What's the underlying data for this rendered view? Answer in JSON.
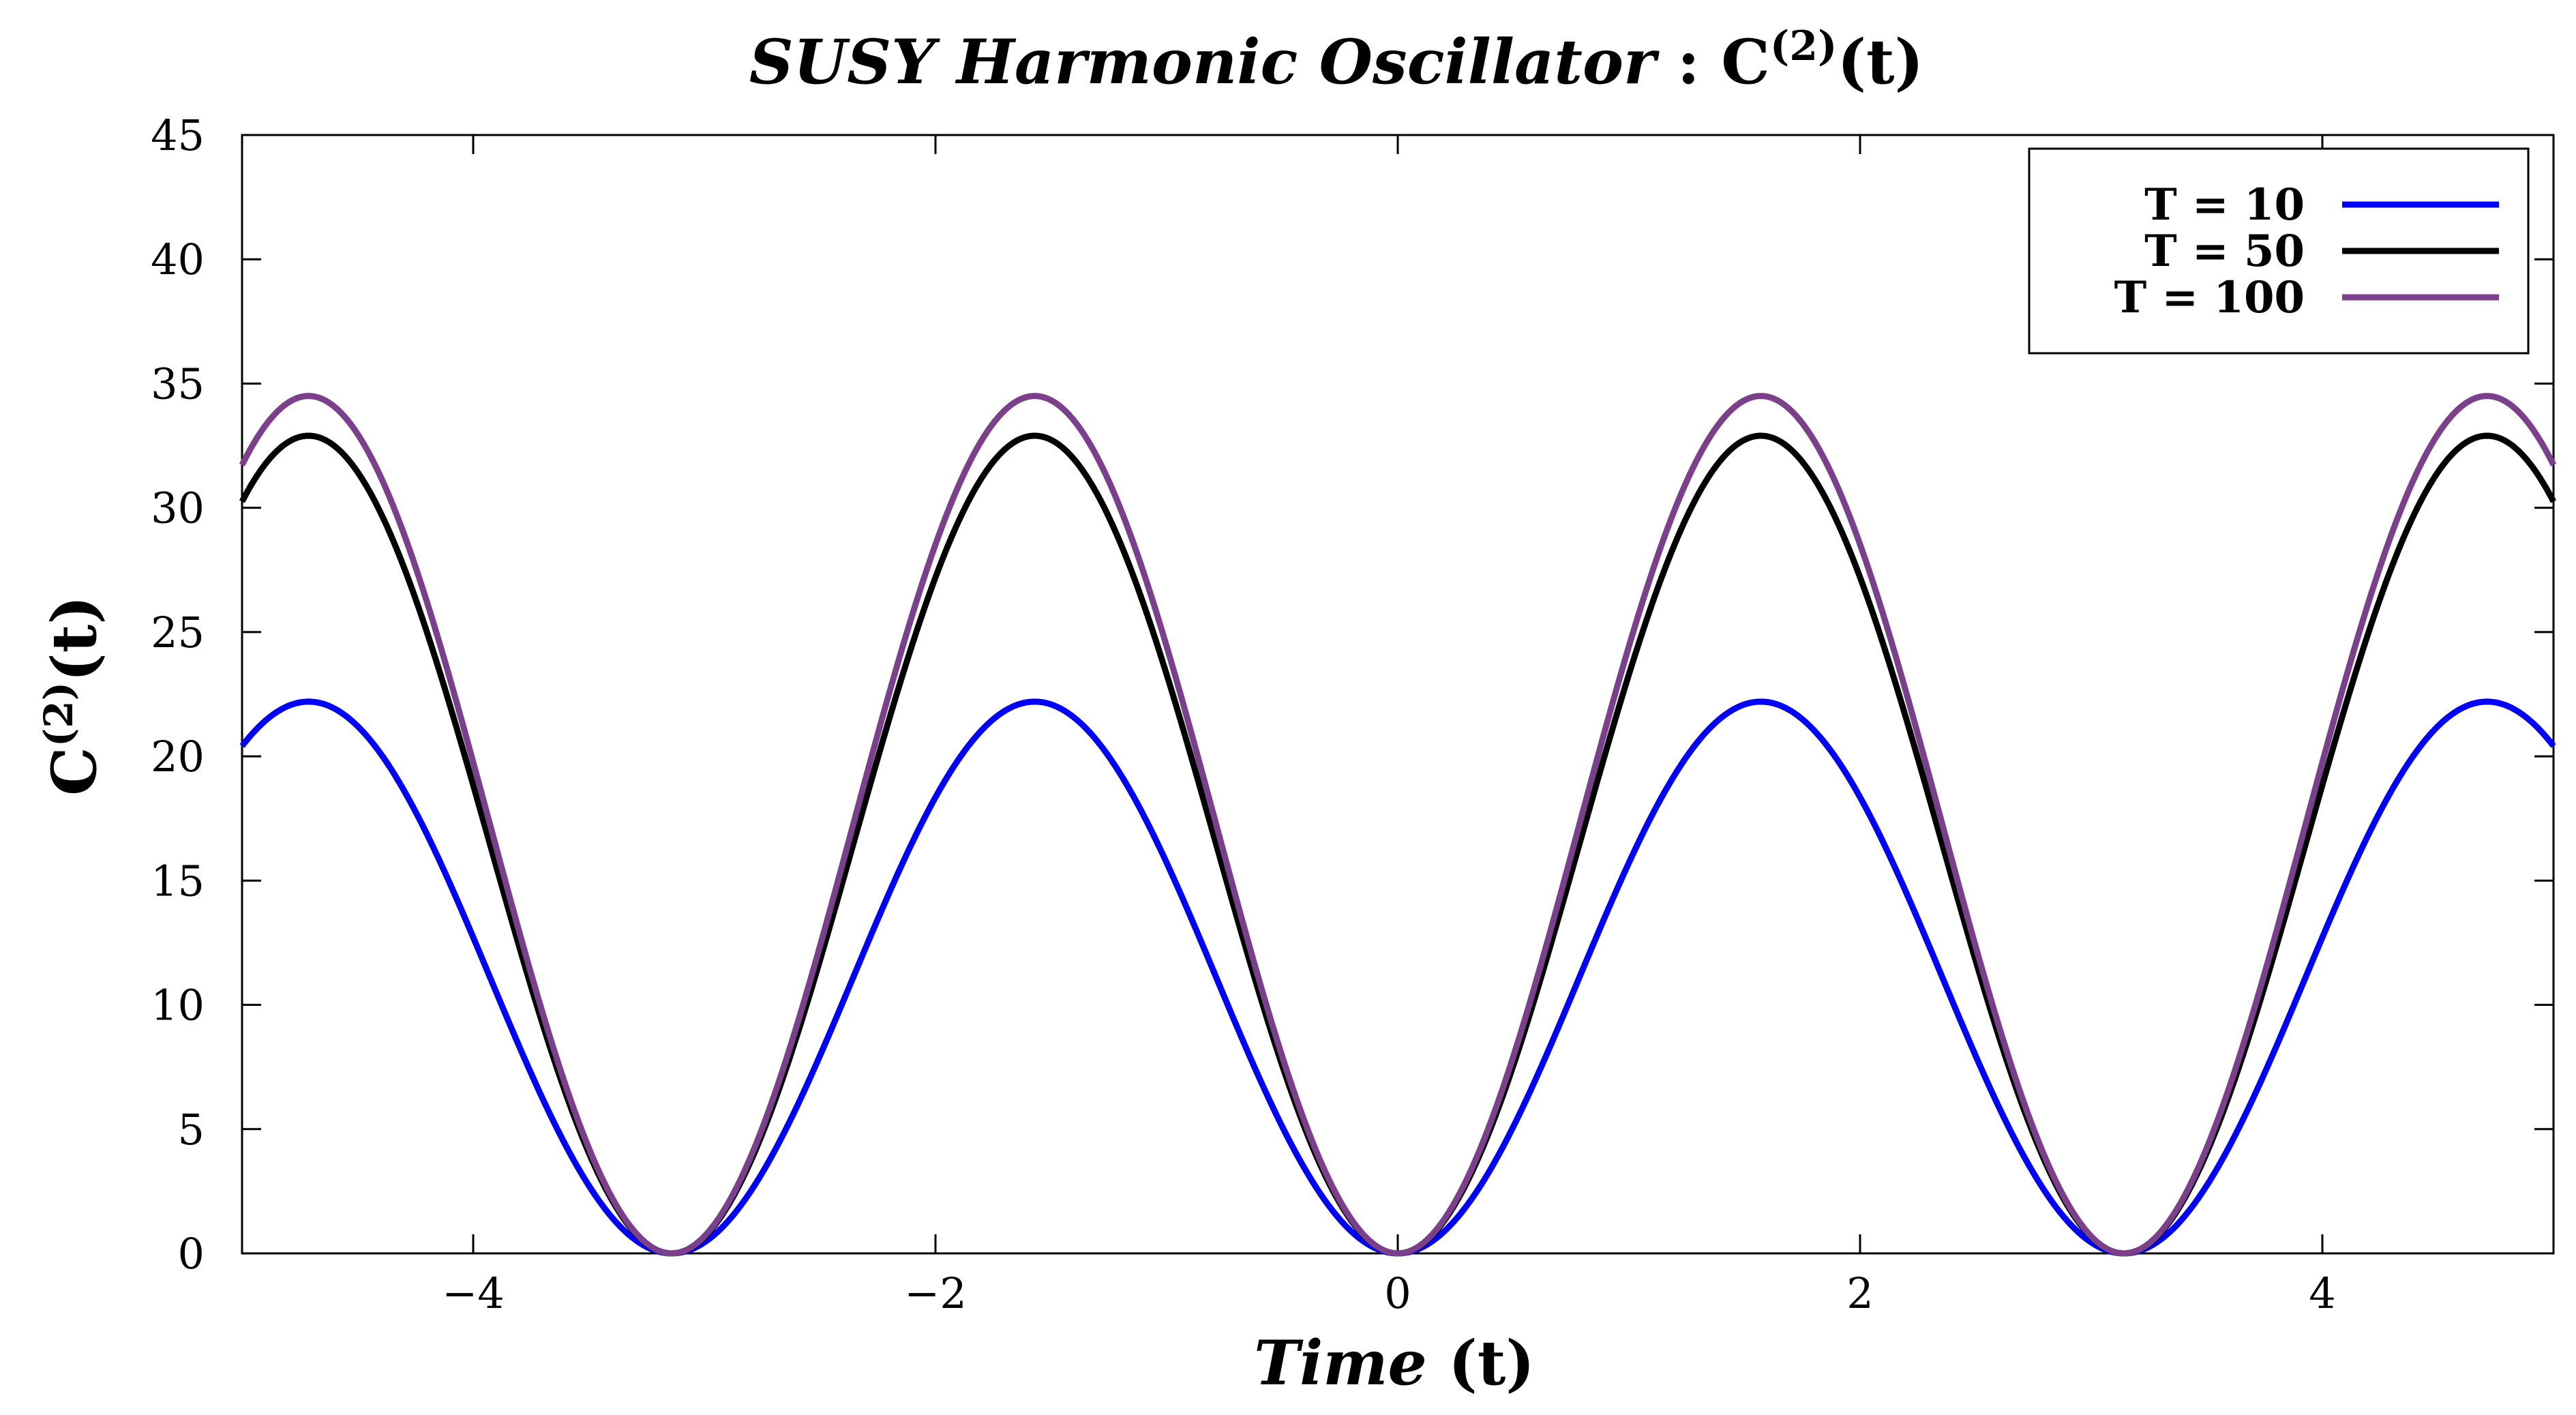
{
  "chart_data": {
    "type": "line",
    "title": {
      "italic_part": "SUSY Harmonic Oscillator",
      "rest_prefix": " : C",
      "superscript": "(2)",
      "rest_suffix": "(t)"
    },
    "xlabel": {
      "italic_part": "Time",
      "rest": " (t)"
    },
    "ylabel": {
      "base": "C",
      "superscript": "(2)",
      "suffix": "(t)"
    },
    "xlim": [
      -5,
      5
    ],
    "ylim": [
      0,
      45
    ],
    "x_ticks": [
      -4,
      -2,
      0,
      2,
      4
    ],
    "x_tick_labels": [
      "−4",
      "−2",
      "0",
      "2",
      "4"
    ],
    "y_ticks": [
      0,
      5,
      10,
      15,
      20,
      25,
      30,
      35,
      40,
      45
    ],
    "y_tick_labels": [
      "0",
      "5",
      "10",
      "15",
      "20",
      "25",
      "30",
      "35",
      "40",
      "45"
    ],
    "grid": false,
    "legend_position": "top-right",
    "series": [
      {
        "name": "T = 10",
        "color": "#0000ff",
        "amplitude": 22.2,
        "function": "amplitude*sin^2(t)",
        "x": [
          -5,
          -4.71,
          -3.14,
          -1.57,
          0,
          1.57,
          3.14,
          4.71,
          5
        ],
        "y": [
          20.5,
          22.2,
          0,
          22.2,
          0,
          22.2,
          0,
          22.2,
          20.5
        ]
      },
      {
        "name": "T = 50",
        "color": "#000000",
        "amplitude": 32.9,
        "function": "amplitude*sin^2(t)",
        "x": [
          -5,
          -4.71,
          -3.14,
          -1.57,
          0,
          1.57,
          3.14,
          4.71,
          5
        ],
        "y": [
          30.4,
          32.9,
          0,
          32.9,
          0,
          32.9,
          0,
          32.9,
          30.4
        ]
      },
      {
        "name": "T = 100",
        "color": "#7b3f8c",
        "amplitude": 34.5,
        "function": "amplitude*sin^2(t)",
        "x": [
          -5,
          -4.71,
          -3.14,
          -1.57,
          0,
          1.57,
          3.14,
          4.71,
          5
        ],
        "y": [
          31.9,
          34.5,
          0,
          34.5,
          0,
          34.5,
          0,
          34.5,
          31.9
        ]
      }
    ]
  }
}
